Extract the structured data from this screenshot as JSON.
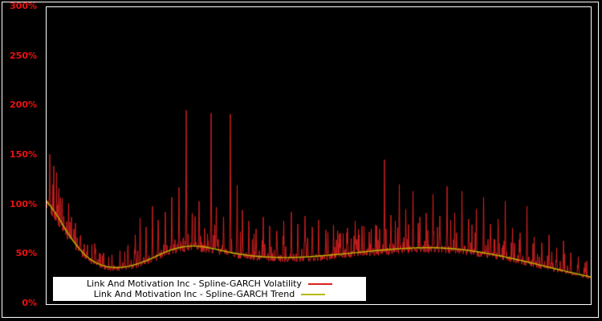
{
  "chart_data": {
    "type": "line",
    "title": "",
    "xlabel": "",
    "ylabel": "",
    "ylim": [
      0,
      300
    ],
    "grid": false,
    "background_color": "#000000",
    "frame_color": "#ffffff",
    "axis_label_color": "#ee1111",
    "legend_position": "bottom-left",
    "y_ticks": [
      "0%",
      "50%",
      "100%",
      "150%",
      "200%",
      "250%",
      "300%"
    ],
    "series": [
      {
        "name": "Link And Motivation Inc - Spline-GARCH Volatility",
        "color": "#dd2222"
      },
      {
        "name": "Link And Motivation Inc - Spline-GARCH Trend",
        "color": "#b8b800"
      }
    ],
    "trend_points": [
      [
        0,
        104
      ],
      [
        0.01,
        97
      ],
      [
        0.02,
        89
      ],
      [
        0.03,
        80
      ],
      [
        0.04,
        71
      ],
      [
        0.05,
        63
      ],
      [
        0.06,
        56
      ],
      [
        0.07,
        50
      ],
      [
        0.08,
        45.5
      ],
      [
        0.09,
        42
      ],
      [
        0.1,
        39.5
      ],
      [
        0.11,
        38
      ],
      [
        0.12,
        37.2
      ],
      [
        0.13,
        37
      ],
      [
        0.14,
        37.3
      ],
      [
        0.15,
        38.2
      ],
      [
        0.16,
        39.5
      ],
      [
        0.17,
        41.2
      ],
      [
        0.18,
        43.2
      ],
      [
        0.19,
        45.5
      ],
      [
        0.2,
        48
      ],
      [
        0.21,
        50.5
      ],
      [
        0.22,
        53
      ],
      [
        0.23,
        55
      ],
      [
        0.24,
        56.6
      ],
      [
        0.25,
        57.8
      ],
      [
        0.26,
        58.5
      ],
      [
        0.27,
        58.8
      ],
      [
        0.28,
        58.5
      ],
      [
        0.29,
        57.8
      ],
      [
        0.3,
        56.8
      ],
      [
        0.31,
        55.6
      ],
      [
        0.32,
        54.4
      ],
      [
        0.33,
        53.2
      ],
      [
        0.34,
        52
      ],
      [
        0.35,
        51
      ],
      [
        0.36,
        50.1
      ],
      [
        0.37,
        49.3
      ],
      [
        0.38,
        48.7
      ],
      [
        0.39,
        48.2
      ],
      [
        0.4,
        47.8
      ],
      [
        0.42,
        47.3
      ],
      [
        0.44,
        47.1
      ],
      [
        0.46,
        47.3
      ],
      [
        0.48,
        47.8
      ],
      [
        0.5,
        48.6
      ],
      [
        0.52,
        49.5
      ],
      [
        0.54,
        50.5
      ],
      [
        0.56,
        51.6
      ],
      [
        0.58,
        52.7
      ],
      [
        0.6,
        53.8
      ],
      [
        0.62,
        54.8
      ],
      [
        0.64,
        55.7
      ],
      [
        0.66,
        56.4
      ],
      [
        0.68,
        56.9
      ],
      [
        0.7,
        57.1
      ],
      [
        0.72,
        56.9
      ],
      [
        0.74,
        56.3
      ],
      [
        0.76,
        55.3
      ],
      [
        0.78,
        53.9
      ],
      [
        0.8,
        52.2
      ],
      [
        0.82,
        50.2
      ],
      [
        0.84,
        48
      ],
      [
        0.86,
        45.6
      ],
      [
        0.88,
        43
      ],
      [
        0.9,
        40.4
      ],
      [
        0.92,
        37.7
      ],
      [
        0.94,
        35
      ],
      [
        0.96,
        32.4
      ],
      [
        0.98,
        29.9
      ],
      [
        1,
        27.5
      ]
    ],
    "volatility": {
      "base_scale": 0.97,
      "noise_amplitude": 0.14,
      "spike_noise_amplitude": 0.55,
      "spikes": [
        [
          0.006,
          122
        ],
        [
          0.012,
          112
        ],
        [
          0.02,
          97
        ],
        [
          0.028,
          88
        ],
        [
          0.04,
          80
        ],
        [
          0.05,
          76
        ],
        [
          0.062,
          68
        ],
        [
          0.075,
          60
        ],
        [
          0.09,
          56
        ],
        [
          0.105,
          52
        ],
        [
          0.12,
          50
        ],
        [
          0.135,
          54
        ],
        [
          0.15,
          60
        ],
        [
          0.163,
          70
        ],
        [
          0.172,
          87
        ],
        [
          0.183,
          78
        ],
        [
          0.195,
          99
        ],
        [
          0.205,
          85
        ],
        [
          0.218,
          93
        ],
        [
          0.23,
          108
        ],
        [
          0.243,
          118
        ],
        [
          0.257,
          196
        ],
        [
          0.268,
          92
        ],
        [
          0.28,
          104
        ],
        [
          0.302,
          193
        ],
        [
          0.312,
          98
        ],
        [
          0.325,
          88
        ],
        [
          0.338,
          192
        ],
        [
          0.35,
          120
        ],
        [
          0.36,
          95
        ],
        [
          0.372,
          84
        ],
        [
          0.385,
          76
        ],
        [
          0.398,
          88
        ],
        [
          0.41,
          79
        ],
        [
          0.423,
          74
        ],
        [
          0.436,
          84
        ],
        [
          0.45,
          93
        ],
        [
          0.462,
          81
        ],
        [
          0.475,
          89
        ],
        [
          0.488,
          78
        ],
        [
          0.5,
          85
        ],
        [
          0.513,
          75
        ],
        [
          0.527,
          80
        ],
        [
          0.54,
          72
        ],
        [
          0.553,
          77
        ],
        [
          0.567,
          84
        ],
        [
          0.58,
          79
        ],
        [
          0.593,
          73
        ],
        [
          0.605,
          80
        ],
        [
          0.621,
          146
        ],
        [
          0.633,
          90
        ],
        [
          0.648,
          121
        ],
        [
          0.66,
          96
        ],
        [
          0.673,
          114
        ],
        [
          0.686,
          88
        ],
        [
          0.698,
          92
        ],
        [
          0.71,
          111
        ],
        [
          0.723,
          89
        ],
        [
          0.736,
          119
        ],
        [
          0.75,
          92
        ],
        [
          0.763,
          114
        ],
        [
          0.776,
          86
        ],
        [
          0.79,
          96
        ],
        [
          0.803,
          108
        ],
        [
          0.816,
          81
        ],
        [
          0.83,
          86
        ],
        [
          0.843,
          104
        ],
        [
          0.856,
          77
        ],
        [
          0.87,
          72
        ],
        [
          0.883,
          99
        ],
        [
          0.896,
          68
        ],
        [
          0.91,
          62
        ],
        [
          0.923,
          70
        ],
        [
          0.937,
          57
        ],
        [
          0.95,
          64
        ],
        [
          0.963,
          52
        ],
        [
          0.977,
          48
        ],
        [
          0.99,
          42
        ]
      ]
    }
  }
}
